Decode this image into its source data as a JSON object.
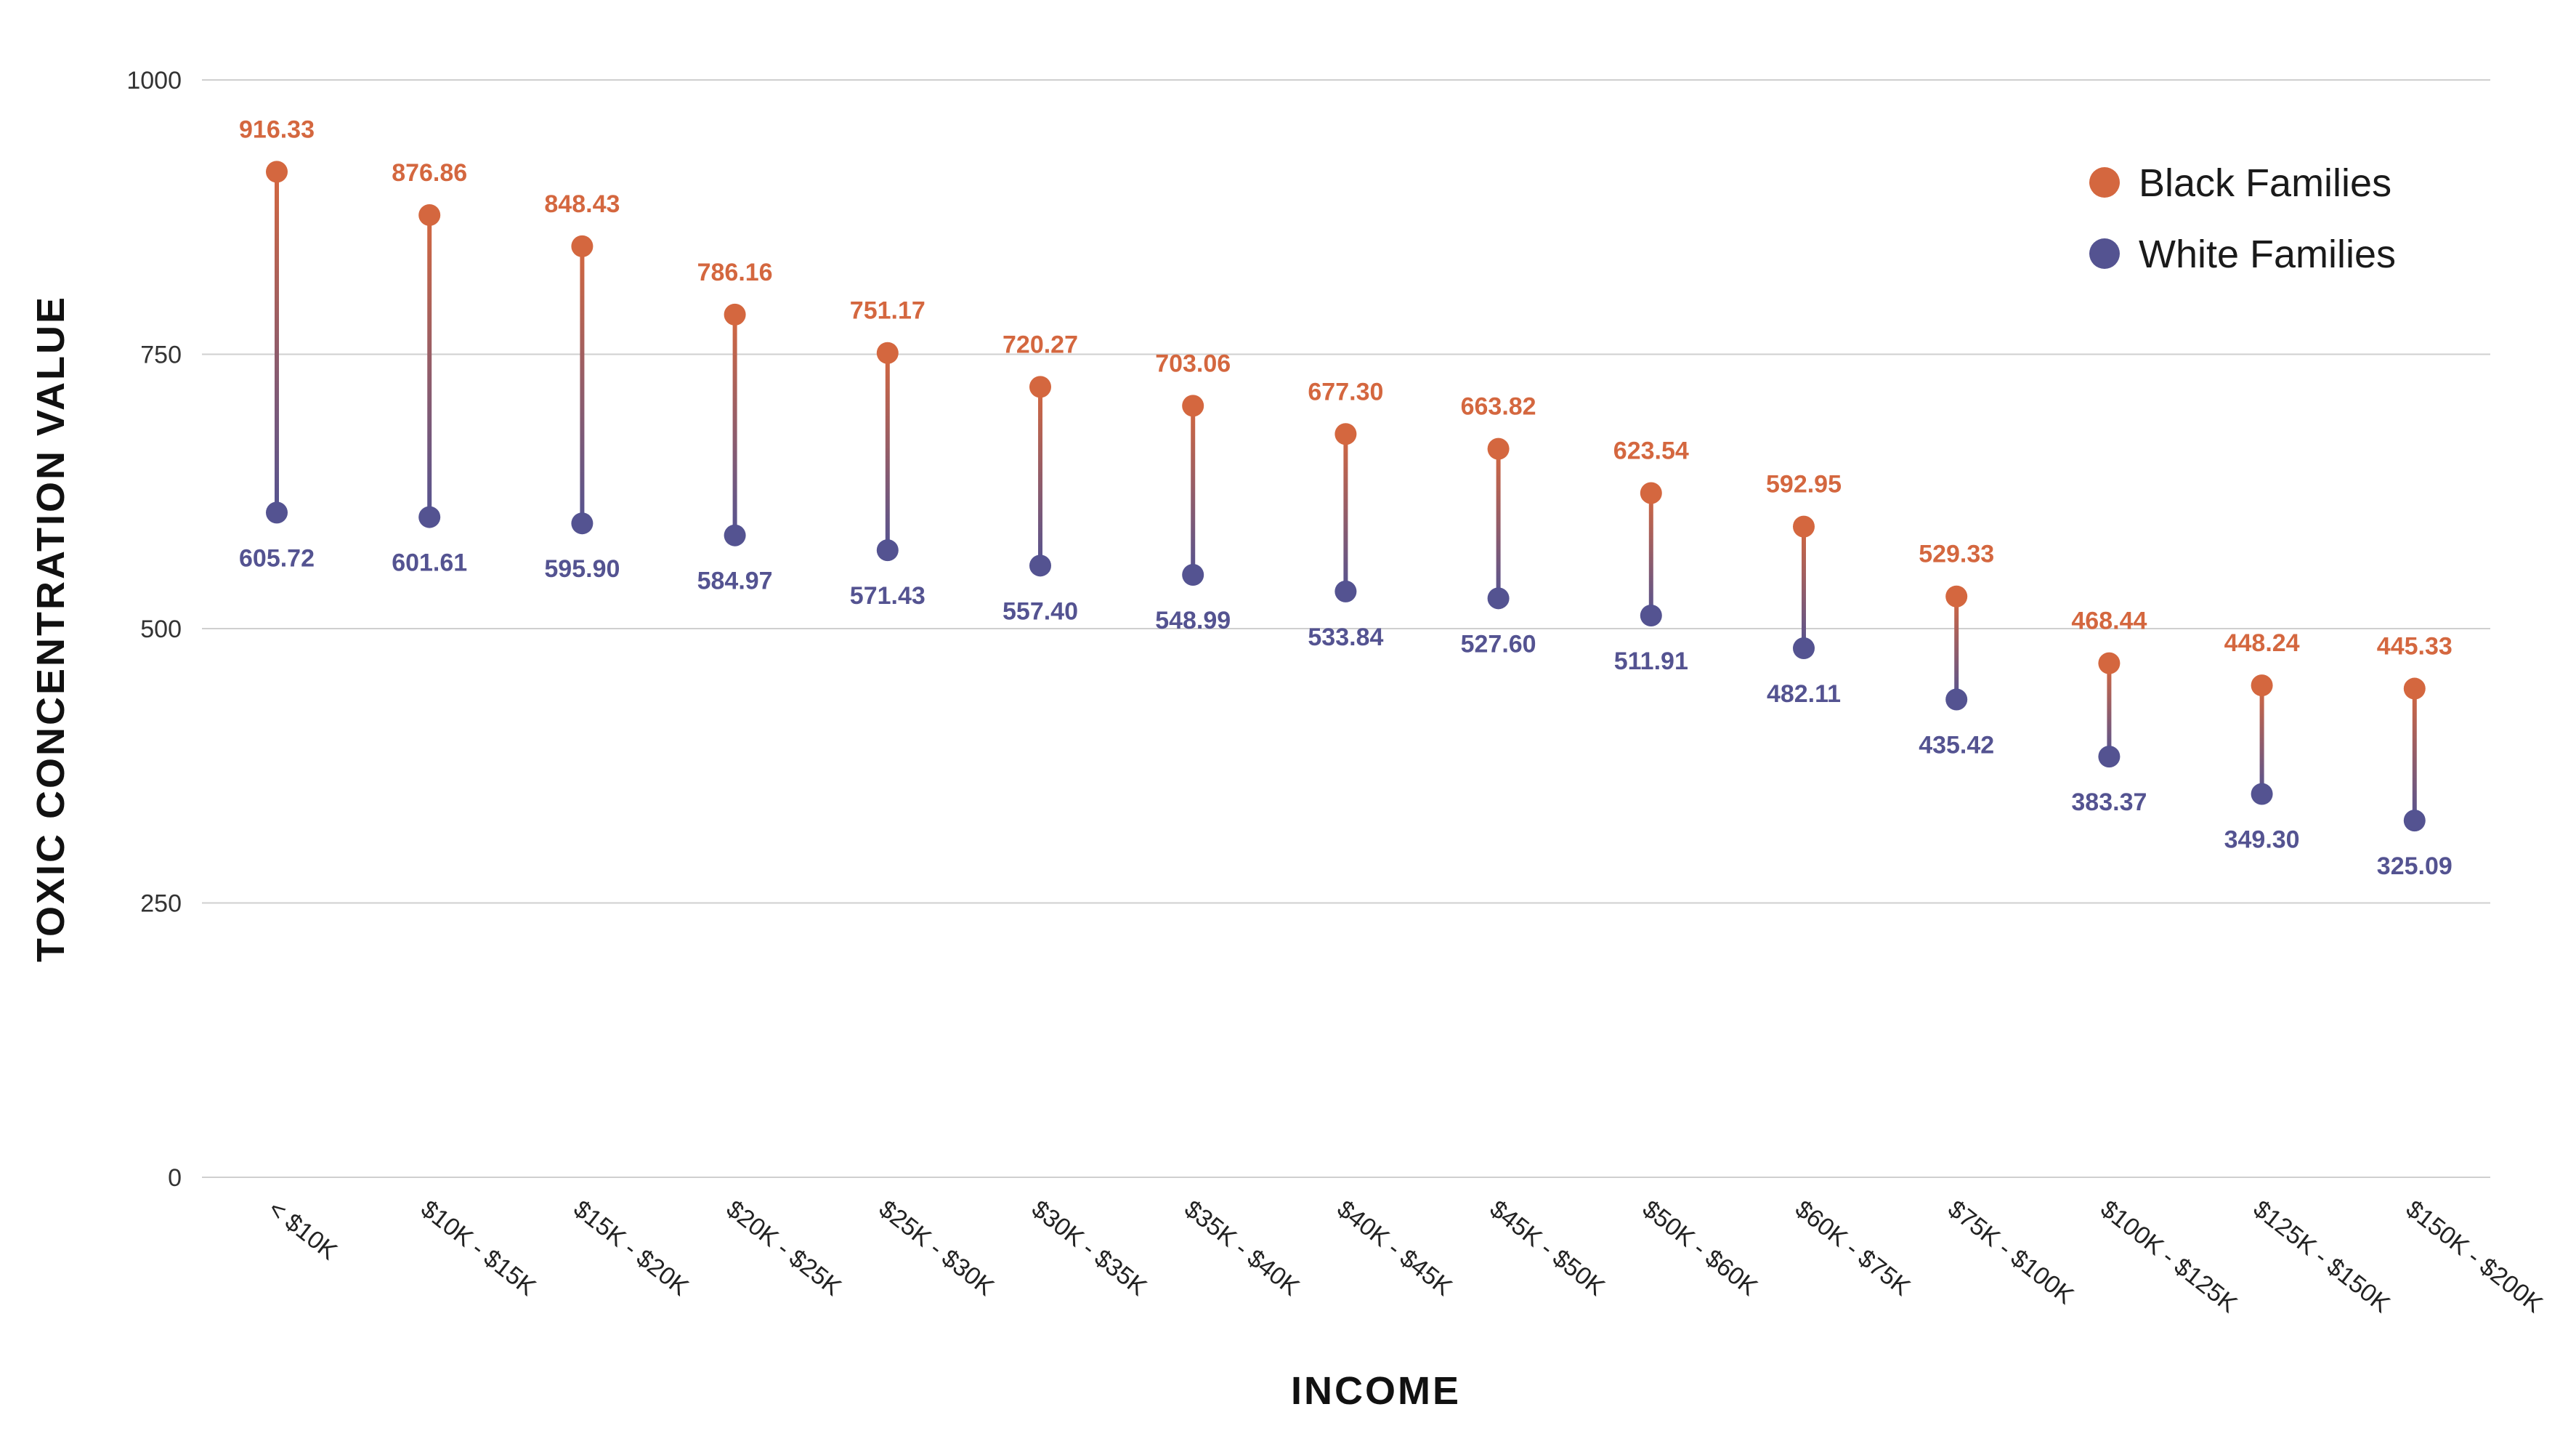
{
  "chart_data": {
    "type": "dumbbell",
    "categories": [
      "< $10K",
      "$10K - $15K",
      "$15K - $20K",
      "$20K - $25K",
      "$25K - $30K",
      "$30K - $35K",
      "$35K - $40K",
      "$40K - $45K",
      "$45K - $50K",
      "$50K - $60K",
      "$60K - $75K",
      "$75K - $100K",
      "$100K - $125K",
      "$125K - $150K",
      "$150K - $200K"
    ],
    "series": [
      {
        "name": "Black Families",
        "color": "#d4673f",
        "values": [
          916.33,
          876.86,
          848.43,
          786.16,
          751.17,
          720.27,
          703.06,
          677.3,
          663.82,
          623.54,
          592.95,
          529.33,
          468.44,
          448.24,
          445.33
        ],
        "labels": [
          "916.33",
          "876.86",
          "848.43",
          "786.16",
          "751.17",
          "720.27",
          "703.06",
          "677.30",
          "663.82",
          "623.54",
          "592.95",
          "529.33",
          "468.44",
          "448.24",
          "445.33"
        ]
      },
      {
        "name": "White Families",
        "color": "#545391",
        "values": [
          605.72,
          601.61,
          595.9,
          584.97,
          571.43,
          557.4,
          548.99,
          533.84,
          527.6,
          511.91,
          482.11,
          435.42,
          383.37,
          349.3,
          325.09
        ],
        "labels": [
          "605.72",
          "601.61",
          "595.90",
          "584.97",
          "571.43",
          "557.40",
          "548.99",
          "533.84",
          "527.60",
          "511.91",
          "482.11",
          "435.42",
          "383.37",
          "349.30",
          "325.09"
        ]
      }
    ],
    "xlabel": "INCOME",
    "ylabel": "TOXIC CONCENTRATION VALUE",
    "ylim": [
      0,
      1000
    ],
    "yticks": [
      0,
      250,
      500,
      750,
      1000
    ],
    "ytick_labels": [
      "0",
      "250",
      "500",
      "750",
      "1000"
    ],
    "grid": true,
    "legend_position": "top-right"
  }
}
